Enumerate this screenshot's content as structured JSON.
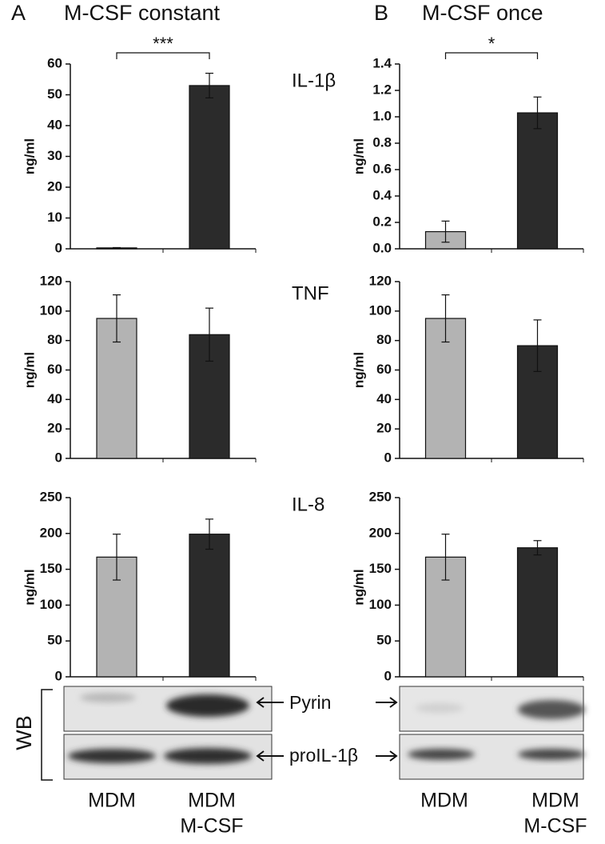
{
  "chart_data": [
    {
      "type": "bar",
      "title": "IL-1β",
      "ylabel": "ng/ml",
      "values": [
        0.3,
        53
      ],
      "errors": [
        0.1,
        4
      ],
      "colors": [
        "#b3b3b3",
        "#2b2b2b"
      ],
      "ylim": [
        0,
        60
      ],
      "yticks": [
        0,
        10,
        20,
        30,
        40,
        50,
        60
      ],
      "annotation": "***"
    },
    {
      "type": "bar",
      "title": "TNF",
      "ylabel": "ng/ml",
      "values": [
        95,
        84
      ],
      "errors": [
        16,
        18
      ],
      "colors": [
        "#b3b3b3",
        "#2b2b2b"
      ],
      "ylim": [
        0,
        120
      ],
      "yticks": [
        0,
        20,
        40,
        60,
        80,
        100,
        120
      ]
    },
    {
      "type": "bar",
      "title": "IL-8",
      "ylabel": "ng/ml",
      "values": [
        167,
        199
      ],
      "errors": [
        32,
        21
      ],
      "colors": [
        "#b3b3b3",
        "#2b2b2b"
      ],
      "ylim": [
        0,
        250
      ],
      "yticks": [
        0,
        50,
        100,
        150,
        200,
        250
      ]
    },
    {
      "type": "bar",
      "ylabel": "ng/ml",
      "values": [
        0.13,
        1.03
      ],
      "errors": [
        0.08,
        0.12
      ],
      "colors": [
        "#b3b3b3",
        "#2b2b2b"
      ],
      "ylim": [
        0,
        1.4
      ],
      "yticks": [
        {
          "value": 0,
          "label": "0.0"
        },
        0.2,
        0.4,
        0.6,
        0.8,
        {
          "value": 1,
          "label": "1.0"
        },
        1.2,
        1.4
      ],
      "annotation": "*"
    },
    {
      "type": "bar",
      "ylabel": "ng/ml",
      "values": [
        95,
        76.5
      ],
      "errors": [
        16,
        17.5
      ],
      "colors": [
        "#b3b3b3",
        "#2b2b2b"
      ],
      "ylim": [
        0,
        120
      ],
      "yticks": [
        0,
        20,
        40,
        60,
        80,
        100,
        120
      ]
    },
    {
      "type": "bar",
      "ylabel": "ng/ml",
      "values": [
        167,
        180
      ],
      "errors": [
        32,
        10
      ],
      "colors": [
        "#b3b3b3",
        "#2b2b2b"
      ],
      "ylim": [
        0,
        250
      ],
      "yticks": [
        0,
        50,
        100,
        150,
        200,
        250
      ]
    }
  ],
  "figure": {
    "panels": [
      {
        "letter": "A",
        "title": "M-CSF constant"
      },
      {
        "letter": "B",
        "title": "M-CSF once"
      }
    ],
    "wb_label": "WB",
    "wb_bands": [
      "Pyrin",
      "proIL-1β"
    ],
    "x_labels": [
      [
        "MDM"
      ],
      [
        "MDM",
        "M-CSF"
      ]
    ]
  }
}
